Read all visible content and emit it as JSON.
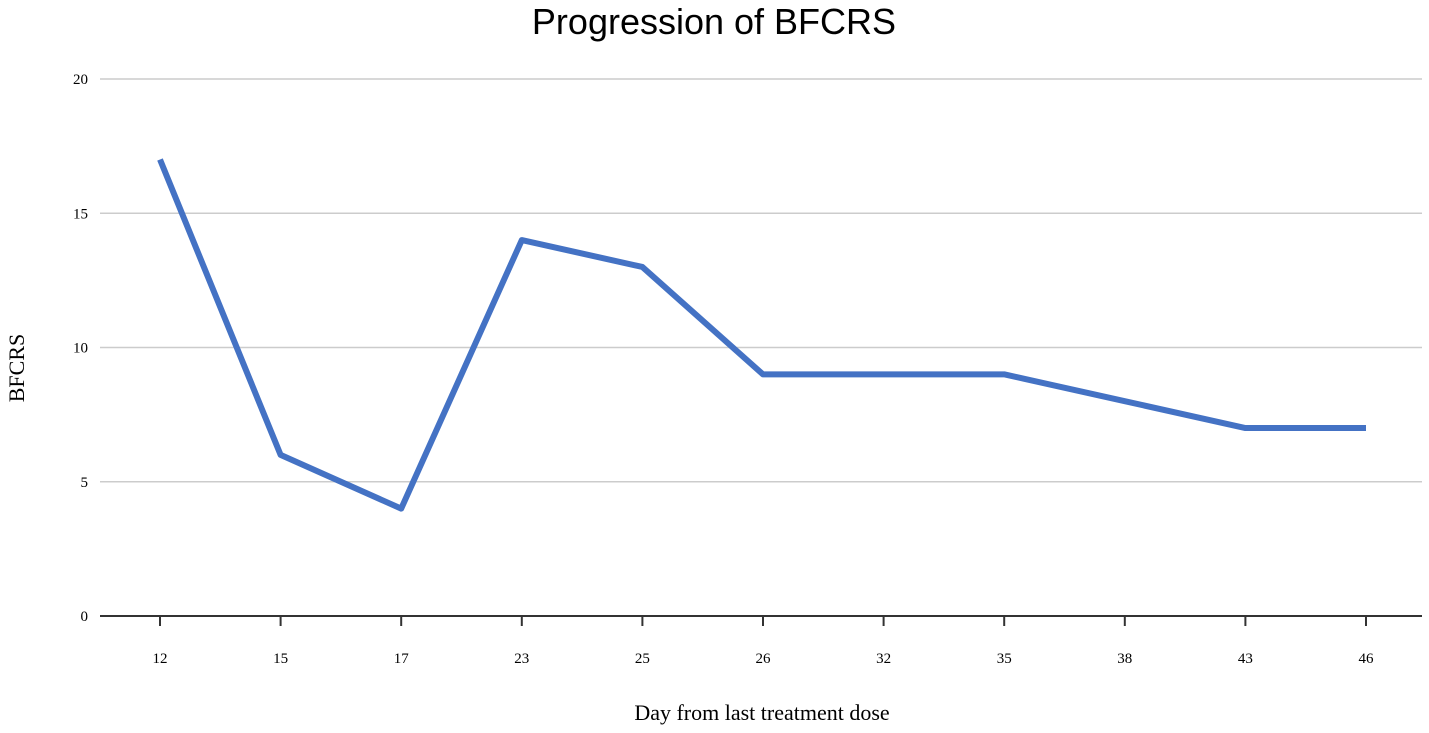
{
  "chart_data": {
    "type": "line",
    "title": "Progression of BFCRS",
    "xlabel": "Day from last treatment dose",
    "ylabel": "BFCRS",
    "categories": [
      "12",
      "15",
      "17",
      "23",
      "25",
      "26",
      "32",
      "35",
      "38",
      "43",
      "46"
    ],
    "series": [
      {
        "values": [
          17,
          6,
          4,
          14,
          13,
          9,
          9,
          9,
          8,
          7,
          7
        ],
        "color": "#4472c4"
      }
    ],
    "ylim": [
      0,
      20
    ],
    "yticks": [
      0,
      5,
      10,
      15,
      20
    ],
    "grid": true,
    "legend": "none"
  }
}
